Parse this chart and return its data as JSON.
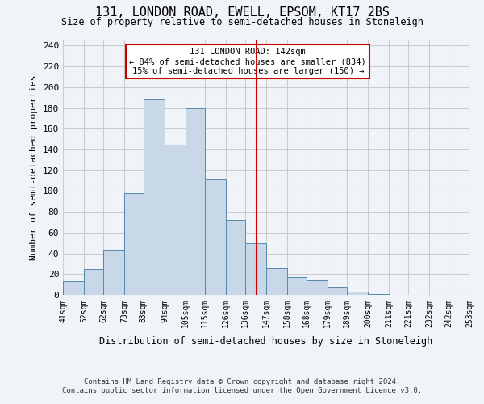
{
  "title": "131, LONDON ROAD, EWELL, EPSOM, KT17 2BS",
  "subtitle": "Size of property relative to semi-detached houses in Stoneleigh",
  "xlabel": "Distribution of semi-detached houses by size in Stoneleigh",
  "ylabel": "Number of semi-detached properties",
  "footer1": "Contains HM Land Registry data © Crown copyright and database right 2024.",
  "footer2": "Contains public sector information licensed under the Open Government Licence v3.0.",
  "bin_labels": [
    "41sqm",
    "52sqm",
    "62sqm",
    "73sqm",
    "83sqm",
    "94sqm",
    "105sqm",
    "115sqm",
    "126sqm",
    "136sqm",
    "147sqm",
    "158sqm",
    "168sqm",
    "179sqm",
    "189sqm",
    "200sqm",
    "211sqm",
    "221sqm",
    "232sqm",
    "242sqm",
    "253sqm"
  ],
  "bin_edges": [
    41,
    52,
    62,
    73,
    83,
    94,
    105,
    115,
    126,
    136,
    147,
    158,
    168,
    179,
    189,
    200,
    211,
    221,
    232,
    242,
    253
  ],
  "bar_heights": [
    13,
    25,
    43,
    98,
    188,
    145,
    180,
    111,
    72,
    50,
    26,
    17,
    14,
    8,
    3,
    1,
    0,
    0,
    0,
    0
  ],
  "property_value": 142,
  "annotation_title": "131 LONDON ROAD: 142sqm",
  "annotation_line1": "← 84% of semi-detached houses are smaller (834)",
  "annotation_line2": "15% of semi-detached houses are larger (150) →",
  "vline_x": 142,
  "bar_color": "#c8d8e8",
  "bar_edge_color": "#5588aa",
  "vline_color": "#cc0000",
  "annotation_box_edge": "#cc0000",
  "ylim": [
    0,
    245
  ],
  "yticks": [
    0,
    20,
    40,
    60,
    80,
    100,
    120,
    140,
    160,
    180,
    200,
    220,
    240
  ],
  "grid_color": "#cccccc",
  "bg_color": "#f0f4f8"
}
